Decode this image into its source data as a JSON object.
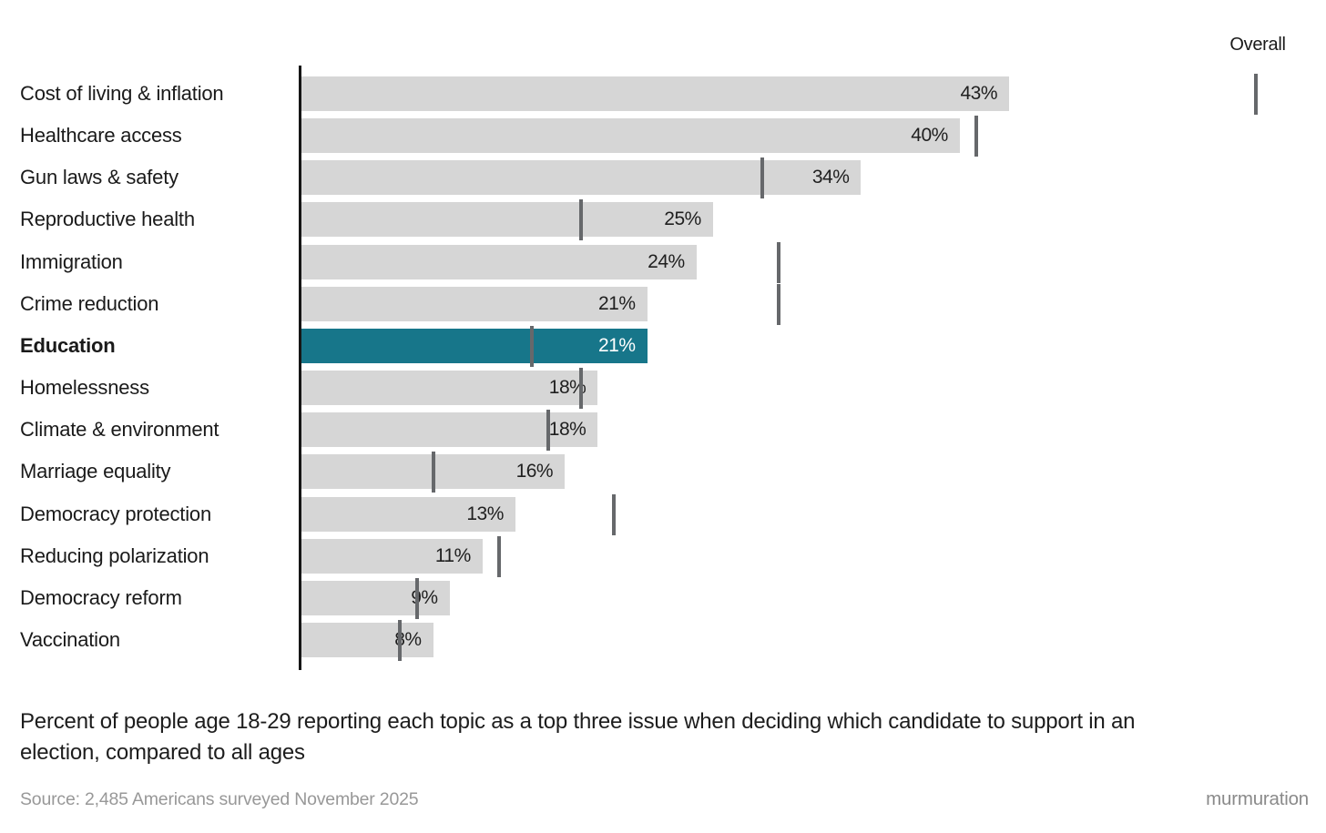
{
  "legend": {
    "overall_label": "Overall"
  },
  "caption": {
    "lines": [
      "Percent of people age 18-29 reporting each topic as a top three issue when deciding which candidate to support in an",
      "election, compared to all ages"
    ]
  },
  "footer": {
    "source": "Source: 2,485 Americans surveyed November 2025",
    "brand": "murmuration"
  },
  "chart_data": {
    "type": "bar",
    "orientation": "horizontal",
    "title": "",
    "value_suffix": "%",
    "categories": [
      "Cost of living & inflation",
      "Healthcare access",
      "Gun laws & safety",
      "Reproductive health",
      "Immigration",
      "Crime reduction",
      "Education",
      "Homelessness",
      "Climate & environment",
      "Marriage equality",
      "Democracy protection",
      "Reducing polarization",
      "Democracy reform",
      "Vaccination"
    ],
    "series": [
      {
        "name": "Age 18-29",
        "style": "bar",
        "values": [
          43,
          40,
          34,
          25,
          24,
          21,
          21,
          18,
          18,
          16,
          13,
          11,
          9,
          8
        ],
        "labels": [
          "43%",
          "40%",
          "34%",
          "25%",
          "24%",
          "21%",
          "21%",
          "18%",
          "18%",
          "16%",
          "13%",
          "11%",
          "9%",
          "8%"
        ]
      },
      {
        "name": "Overall",
        "style": "tick",
        "values": [
          58,
          41,
          28,
          17,
          29,
          29,
          14,
          17,
          15,
          8,
          19,
          12,
          7,
          6
        ]
      }
    ],
    "highlighted_category": "Education",
    "xlim": [
      0,
      62
    ],
    "grid": false,
    "legend_position": "top-right",
    "colors": {
      "bar": "#d6d6d6",
      "highlight_bar": "#17768a",
      "overall_tick": "#66686b",
      "axis": "#161616",
      "value_label": "#1f1f1f",
      "value_label_on_highlight": "#ffffff"
    }
  }
}
